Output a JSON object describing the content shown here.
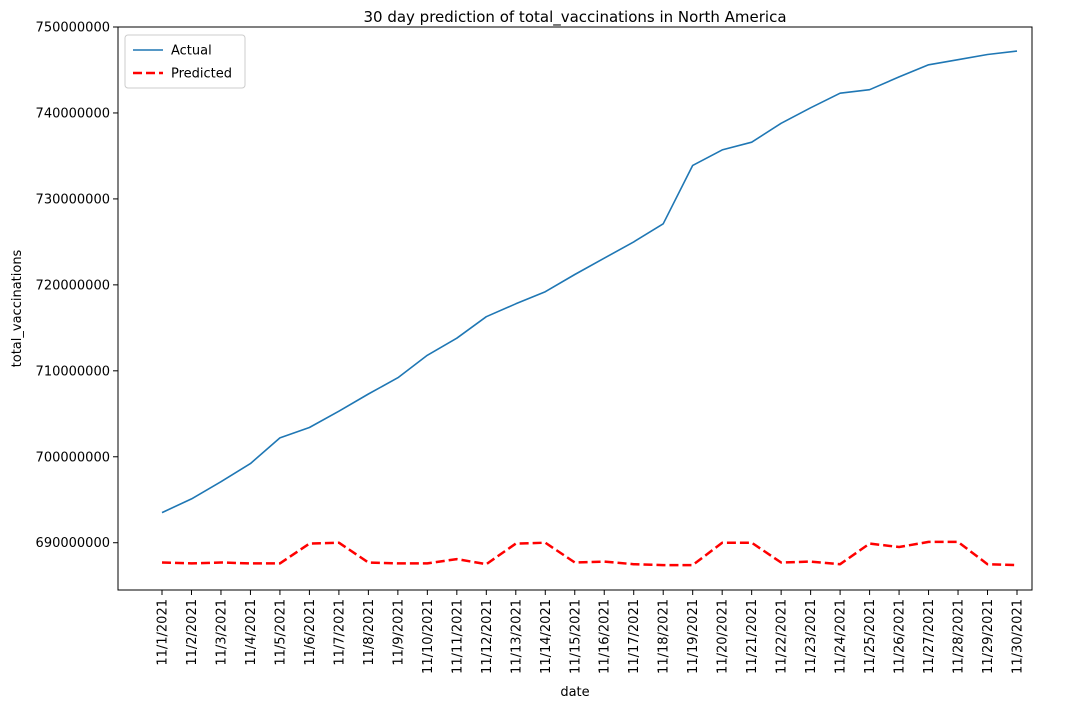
{
  "chart_data": {
    "type": "line",
    "title": "30 day prediction of total_vaccinations in North America",
    "xlabel": "date",
    "ylabel": "total_vaccinations",
    "ylim": [
      684500000,
      750000000
    ],
    "yticks": [
      "690000000",
      "700000000",
      "710000000",
      "720000000",
      "730000000",
      "740000000",
      "750000000"
    ],
    "ytick_values": [
      690000000,
      700000000,
      710000000,
      720000000,
      730000000,
      740000000,
      750000000
    ],
    "categories": [
      "11/1/2021",
      "11/2/2021",
      "11/3/2021",
      "11/4/2021",
      "11/5/2021",
      "11/6/2021",
      "11/7/2021",
      "11/8/2021",
      "11/9/2021",
      "11/10/2021",
      "11/11/2021",
      "11/12/2021",
      "11/13/2021",
      "11/14/2021",
      "11/15/2021",
      "11/16/2021",
      "11/17/2021",
      "11/18/2021",
      "11/19/2021",
      "11/20/2021",
      "11/21/2021",
      "11/22/2021",
      "11/23/2021",
      "11/24/2021",
      "11/25/2021",
      "11/26/2021",
      "11/27/2021",
      "11/28/2021",
      "11/29/2021",
      "11/30/2021"
    ],
    "legend": {
      "position": "top-left"
    },
    "grid": false,
    "series": [
      {
        "name": "Actual",
        "color": "#1f77b4",
        "style": "solid",
        "values": [
          693500000,
          695100000,
          697100000,
          699200000,
          702200000,
          703400000,
          705300000,
          707300000,
          709200000,
          711800000,
          713800000,
          716300000,
          717800000,
          719200000,
          721200000,
          723100000,
          725000000,
          727100000,
          733900000,
          735700000,
          736600000,
          738800000,
          740600000,
          742300000,
          742700000,
          744200000,
          745600000,
          746200000,
          746800000,
          747200000
        ]
      },
      {
        "name": "Predicted",
        "color": "#ff0000",
        "style": "dashed",
        "values": [
          687700000,
          687600000,
          687700000,
          687600000,
          687600000,
          689900000,
          690000000,
          687700000,
          687600000,
          687600000,
          688100000,
          687500000,
          689900000,
          690000000,
          687700000,
          687800000,
          687500000,
          687400000,
          687400000,
          690000000,
          690000000,
          687700000,
          687800000,
          687500000,
          689900000,
          689500000,
          690100000,
          690100000,
          687500000,
          687400000
        ]
      }
    ]
  }
}
